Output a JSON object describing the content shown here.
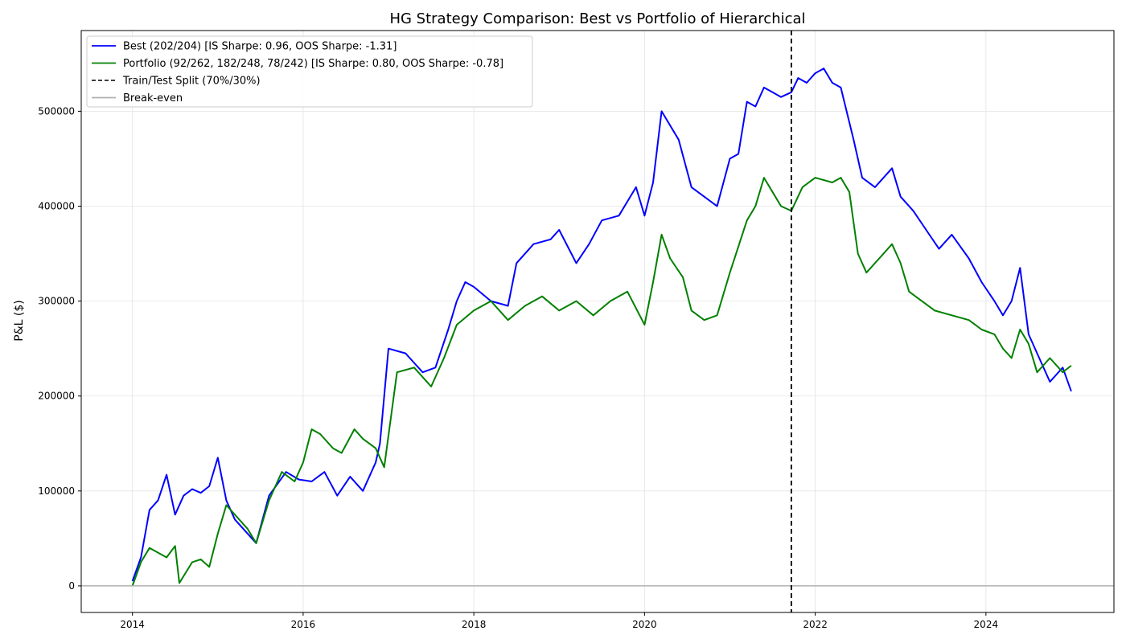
{
  "chart_data": {
    "type": "line",
    "title": "HG Strategy Comparison: Best vs Portfolio of Hierarchical",
    "xlabel": "",
    "ylabel": "P&L ($)",
    "xlim": [
      2013.4,
      2025.5
    ],
    "ylim": [
      -28000,
      585000
    ],
    "x_ticks": [
      2014,
      2016,
      2018,
      2020,
      2022,
      2024
    ],
    "x_tick_labels": [
      "2014",
      "2016",
      "2018",
      "2020",
      "2022",
      "2024"
    ],
    "y_ticks": [
      0,
      100000,
      200000,
      300000,
      400000,
      500000
    ],
    "y_tick_labels": [
      "0",
      "100000",
      "200000",
      "300000",
      "400000",
      "500000"
    ],
    "grid": true,
    "legend_position": "top-left",
    "legend": [
      {
        "label": "Best (202/204) [IS Sharpe: 0.96, OOS Sharpe: -1.31]",
        "color": "#0000ff",
        "style": "solid"
      },
      {
        "label": "Portfolio (92/262, 182/248, 78/242) [IS Sharpe: 0.80, OOS Sharpe: -0.78]",
        "color": "#008000",
        "style": "solid"
      },
      {
        "label": "Train/Test Split (70%/30%)",
        "color": "#000000",
        "style": "dashed"
      },
      {
        "label": "Break-even",
        "color": "#b0b0b0",
        "style": "solid"
      }
    ],
    "split_x": 2021.72,
    "breakeven_y": 0,
    "series": [
      {
        "name": "Best (202/204) [IS Sharpe: 0.96, OOS Sharpe: -1.31]",
        "color": "#0000ff",
        "x": [
          2014.0,
          2014.1,
          2014.2,
          2014.3,
          2014.4,
          2014.5,
          2014.6,
          2014.7,
          2014.8,
          2014.9,
          2015.0,
          2015.1,
          2015.2,
          2015.3,
          2015.45,
          2015.6,
          2015.8,
          2015.95,
          2016.1,
          2016.25,
          2016.4,
          2016.55,
          2016.7,
          2016.85,
          2016.9,
          2017.0,
          2017.2,
          2017.4,
          2017.55,
          2017.7,
          2017.8,
          2017.9,
          2018.0,
          2018.2,
          2018.4,
          2018.5,
          2018.7,
          2018.9,
          2019.0,
          2019.2,
          2019.35,
          2019.5,
          2019.7,
          2019.9,
          2020.0,
          2020.1,
          2020.2,
          2020.4,
          2020.55,
          2020.7,
          2020.85,
          2021.0,
          2021.1,
          2021.2,
          2021.3,
          2021.4,
          2021.5,
          2021.6,
          2021.72,
          2021.8,
          2021.9,
          2022.0,
          2022.1,
          2022.2,
          2022.3,
          2022.45,
          2022.55,
          2022.7,
          2022.9,
          2023.0,
          2023.15,
          2023.3,
          2023.45,
          2023.6,
          2023.8,
          2023.95,
          2024.1,
          2024.2,
          2024.3,
          2024.4,
          2024.5,
          2024.6,
          2024.75,
          2024.9,
          2025.0
        ],
        "values": [
          5000,
          30000,
          80000,
          90000,
          117000,
          75000,
          95000,
          102000,
          98000,
          105000,
          135000,
          90000,
          70000,
          60000,
          45000,
          95000,
          120000,
          112000,
          110000,
          120000,
          95000,
          115000,
          100000,
          130000,
          150000,
          250000,
          245000,
          225000,
          230000,
          270000,
          300000,
          320000,
          315000,
          300000,
          295000,
          340000,
          360000,
          365000,
          375000,
          340000,
          360000,
          385000,
          390000,
          420000,
          390000,
          425000,
          500000,
          470000,
          420000,
          410000,
          400000,
          450000,
          455000,
          510000,
          505000,
          525000,
          520000,
          515000,
          520000,
          535000,
          530000,
          540000,
          545000,
          530000,
          525000,
          470000,
          430000,
          420000,
          440000,
          410000,
          395000,
          375000,
          355000,
          370000,
          345000,
          320000,
          300000,
          285000,
          300000,
          335000,
          265000,
          245000,
          215000,
          230000,
          205000
        ]
      },
      {
        "name": "Portfolio (92/262, 182/248, 78/242) [IS Sharpe: 0.80, OOS Sharpe: -0.78]",
        "color": "#008000",
        "x": [
          2014.0,
          2014.1,
          2014.2,
          2014.3,
          2014.4,
          2014.5,
          2014.55,
          2014.7,
          2014.8,
          2014.9,
          2015.0,
          2015.1,
          2015.2,
          2015.35,
          2015.45,
          2015.6,
          2015.75,
          2015.9,
          2016.0,
          2016.1,
          2016.2,
          2016.35,
          2016.45,
          2016.6,
          2016.7,
          2016.85,
          2016.95,
          2017.1,
          2017.3,
          2017.5,
          2017.65,
          2017.8,
          2018.0,
          2018.2,
          2018.4,
          2018.6,
          2018.8,
          2019.0,
          2019.2,
          2019.4,
          2019.6,
          2019.8,
          2020.0,
          2020.1,
          2020.2,
          2020.3,
          2020.45,
          2020.55,
          2020.7,
          2020.85,
          2021.0,
          2021.2,
          2021.3,
          2021.4,
          2021.5,
          2021.6,
          2021.72,
          2021.85,
          2022.0,
          2022.2,
          2022.3,
          2022.4,
          2022.5,
          2022.6,
          2022.75,
          2022.9,
          2023.0,
          2023.1,
          2023.25,
          2023.4,
          2023.6,
          2023.8,
          2023.95,
          2024.1,
          2024.2,
          2024.3,
          2024.4,
          2024.5,
          2024.6,
          2024.75,
          2024.9,
          2025.0
        ],
        "values": [
          0,
          25000,
          40000,
          35000,
          30000,
          42000,
          3000,
          25000,
          28000,
          20000,
          55000,
          85000,
          75000,
          60000,
          45000,
          90000,
          120000,
          110000,
          130000,
          165000,
          160000,
          145000,
          140000,
          165000,
          155000,
          145000,
          125000,
          225000,
          230000,
          210000,
          240000,
          275000,
          290000,
          300000,
          280000,
          295000,
          305000,
          290000,
          300000,
          285000,
          300000,
          310000,
          275000,
          320000,
          370000,
          345000,
          325000,
          290000,
          280000,
          285000,
          330000,
          385000,
          400000,
          430000,
          415000,
          400000,
          395000,
          420000,
          430000,
          425000,
          430000,
          415000,
          350000,
          330000,
          345000,
          360000,
          340000,
          310000,
          300000,
          290000,
          285000,
          280000,
          270000,
          265000,
          250000,
          240000,
          270000,
          255000,
          225000,
          240000,
          225000,
          232000
        ]
      }
    ]
  }
}
